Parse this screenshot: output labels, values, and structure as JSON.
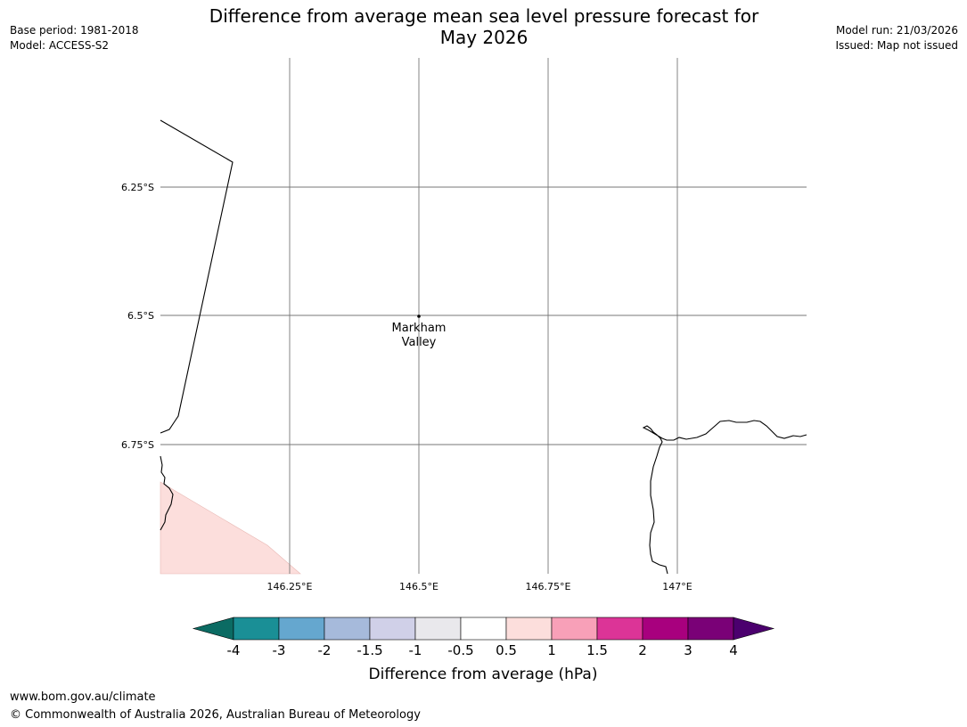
{
  "title": {
    "line1": "Difference from average mean sea level pressure forecast for",
    "line2": "May 2026"
  },
  "meta_left": {
    "base_period": "Base period: 1981-2018",
    "model": "Model: ACCESS-S2"
  },
  "meta_right": {
    "model_run": "Model run: 21/03/2026",
    "issued": "Issued: Map not issued"
  },
  "map": {
    "latitude_labels": [
      "6.25°S",
      "6.5°S",
      "6.75°S"
    ],
    "longitude_labels": [
      "146.25°E",
      "146.5°E",
      "146.75°E",
      "147°E"
    ],
    "place": {
      "name_line1": "Markham",
      "name_line2": "Valley"
    },
    "shaded_region_color": "#fcdedc"
  },
  "colorbar": {
    "tick_labels": [
      "-4",
      "-3",
      "-2",
      "-1.5",
      "-1",
      "-0.5",
      "0.5",
      "1",
      "1.5",
      "2",
      "3",
      "4"
    ],
    "colors": [
      "#1a8f96",
      "#65a7cf",
      "#a6badb",
      "#d0d0e8",
      "#e9e8ec",
      "#ffffff",
      "#fcdedc",
      "#f8a0b8",
      "#dc3497",
      "#a8007e",
      "#7a0177"
    ],
    "extend_low_color": "#0b6b63",
    "extend_high_color": "#4b006e",
    "label": "Difference from average (hPa)"
  },
  "footer": {
    "url": "www.bom.gov.au/climate",
    "copyright": "© Commonwealth of Australia 2026, Australian Bureau of Meteorology"
  }
}
